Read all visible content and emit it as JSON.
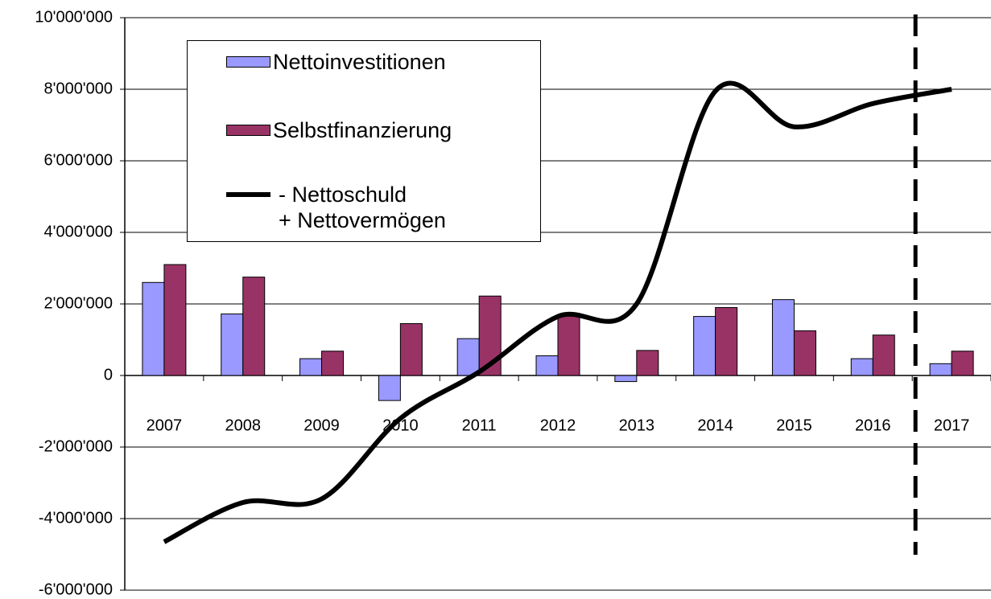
{
  "chart_data": {
    "type": "bar",
    "categories": [
      "2007",
      "2008",
      "2009",
      "2010",
      "2011",
      "2012",
      "2013",
      "2014",
      "2015",
      "2016",
      "2017"
    ],
    "series": [
      {
        "name": "Nettoinvestitionen",
        "color": "#9999ff",
        "type": "bar",
        "values": [
          2600000,
          1720000,
          470000,
          -700000,
          1030000,
          550000,
          -170000,
          1650000,
          2120000,
          470000,
          330000
        ]
      },
      {
        "name": "Selbstfinanzierung",
        "color": "#993366",
        "type": "bar",
        "values": [
          3100000,
          2750000,
          680000,
          1450000,
          2220000,
          1680000,
          700000,
          1900000,
          1250000,
          1130000,
          680000
        ]
      },
      {
        "name": "- Nettoschuld\n+ Nettovermögen",
        "color": "#000000",
        "type": "line",
        "values": [
          -4650000,
          -3550000,
          -3450000,
          -1200000,
          100000,
          1650000,
          2000000,
          7950000,
          6950000,
          7600000,
          8000000
        ]
      }
    ],
    "ylim": [
      -6000000,
      10000000
    ],
    "yticks": [
      {
        "value": -6000000,
        "label": "-6'000'000"
      },
      {
        "value": -4000000,
        "label": "-4'000'000"
      },
      {
        "value": -2000000,
        "label": "-2'000'000"
      },
      0,
      {
        "value": 2000000,
        "label": "2'000'000"
      },
      {
        "value": 4000000,
        "label": "4'000'000"
      },
      {
        "value": 6000000,
        "label": "6'000'000"
      },
      {
        "value": 8000000,
        "label": "8'000'000"
      },
      {
        "value": 10000000,
        "label": "10'000'000"
      }
    ],
    "grid": true
  }
}
